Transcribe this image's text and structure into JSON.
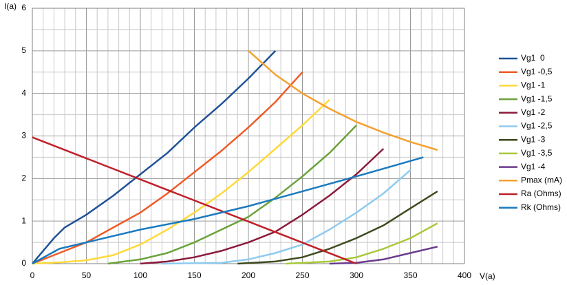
{
  "chart_data": {
    "type": "line",
    "y_label": "I(a)",
    "x_label": "V(a)",
    "xlim": [
      0,
      400
    ],
    "ylim": [
      0,
      6
    ],
    "xticks": [
      0,
      50,
      100,
      150,
      200,
      250,
      300,
      350,
      400
    ],
    "yticks": [
      0,
      1,
      2,
      3,
      4,
      5,
      6
    ],
    "xgrid": [
      10,
      20,
      30,
      40,
      60,
      70,
      80,
      90,
      110,
      120,
      130,
      140,
      160,
      170,
      180,
      190,
      210,
      220,
      230,
      240,
      260,
      270,
      280,
      290,
      310,
      320,
      330,
      340,
      360,
      370,
      380,
      390
    ],
    "ygrid": [
      0.5,
      1.5,
      2.5,
      3.5,
      4.5,
      5.5
    ],
    "grid": true,
    "legend": "right",
    "series": [
      {
        "name": "Vg1  0",
        "color": "#1f5196",
        "x": [
          0,
          10,
          20,
          30,
          50,
          75,
          100,
          125,
          150,
          175,
          200,
          225
        ],
        "values": [
          0,
          0.3,
          0.6,
          0.85,
          1.15,
          1.6,
          2.1,
          2.6,
          3.2,
          3.75,
          4.35,
          5
        ]
      },
      {
        "name": "Vg1 -0,5",
        "color": "#f05a28",
        "x": [
          0,
          25,
          50,
          75,
          100,
          125,
          150,
          175,
          200,
          225,
          250
        ],
        "values": [
          0,
          0.25,
          0.5,
          0.85,
          1.2,
          1.65,
          2.15,
          2.65,
          3.2,
          3.8,
          4.5
        ]
      },
      {
        "name": "Vg1 -1",
        "color": "#ffd93a",
        "x": [
          0,
          25,
          50,
          75,
          100,
          125,
          150,
          175,
          200,
          225,
          250,
          275
        ],
        "values": [
          0,
          0.03,
          0.08,
          0.2,
          0.45,
          0.8,
          1.2,
          1.65,
          2.15,
          2.7,
          3.25,
          3.85
        ]
      },
      {
        "name": "Vg1 -1,5",
        "color": "#6aa23a",
        "x": [
          70,
          100,
          125,
          150,
          175,
          200,
          225,
          250,
          275,
          300
        ],
        "values": [
          0,
          0.1,
          0.25,
          0.5,
          0.8,
          1.1,
          1.55,
          2.05,
          2.6,
          3.25
        ]
      },
      {
        "name": "Vg1 -2",
        "color": "#8b1a3a",
        "x": [
          100,
          125,
          150,
          175,
          200,
          225,
          250,
          275,
          300,
          325
        ],
        "values": [
          0,
          0.05,
          0.15,
          0.3,
          0.5,
          0.75,
          1.15,
          1.6,
          2.1,
          2.7
        ]
      },
      {
        "name": "Vg1 -2,5",
        "color": "#8ecbf0",
        "x": [
          120,
          175,
          200,
          225,
          250,
          275,
          300,
          325,
          350
        ],
        "values": [
          0,
          0.02,
          0.1,
          0.25,
          0.45,
          0.8,
          1.2,
          1.65,
          2.2
        ]
      },
      {
        "name": "Vg1 -3",
        "color": "#3d4a1e",
        "x": [
          190,
          225,
          250,
          275,
          300,
          325,
          350,
          375
        ],
        "values": [
          0,
          0.05,
          0.15,
          0.35,
          0.6,
          0.9,
          1.3,
          1.7
        ]
      },
      {
        "name": "Vg1 -3,5",
        "color": "#a8c83a",
        "x": [
          235,
          275,
          300,
          325,
          350,
          375
        ],
        "values": [
          0,
          0.05,
          0.15,
          0.35,
          0.6,
          0.95
        ]
      },
      {
        "name": "Vg1 -4",
        "color": "#6a3a8c",
        "x": [
          275,
          300,
          325,
          350,
          375
        ],
        "values": [
          0,
          0.02,
          0.1,
          0.25,
          0.4
        ]
      },
      {
        "name": "Pmax (mA)",
        "color": "#f5a030",
        "x": [
          200,
          225,
          250,
          275,
          300,
          325,
          350,
          375
        ],
        "values": [
          5,
          4.44,
          4,
          3.64,
          3.33,
          3.08,
          2.86,
          2.67
        ]
      },
      {
        "name": "Ra (Ohms)",
        "color": "#c0202a",
        "x": [
          0,
          300
        ],
        "values": [
          2.97,
          0
        ]
      },
      {
        "name": "Rk (Ohms)",
        "color": "#1a7abf",
        "x": [
          0,
          25,
          50,
          100,
          150,
          200,
          250,
          300,
          362
        ],
        "values": [
          0,
          0.35,
          0.5,
          0.8,
          1.05,
          1.35,
          1.7,
          2.05,
          2.5
        ]
      }
    ]
  }
}
